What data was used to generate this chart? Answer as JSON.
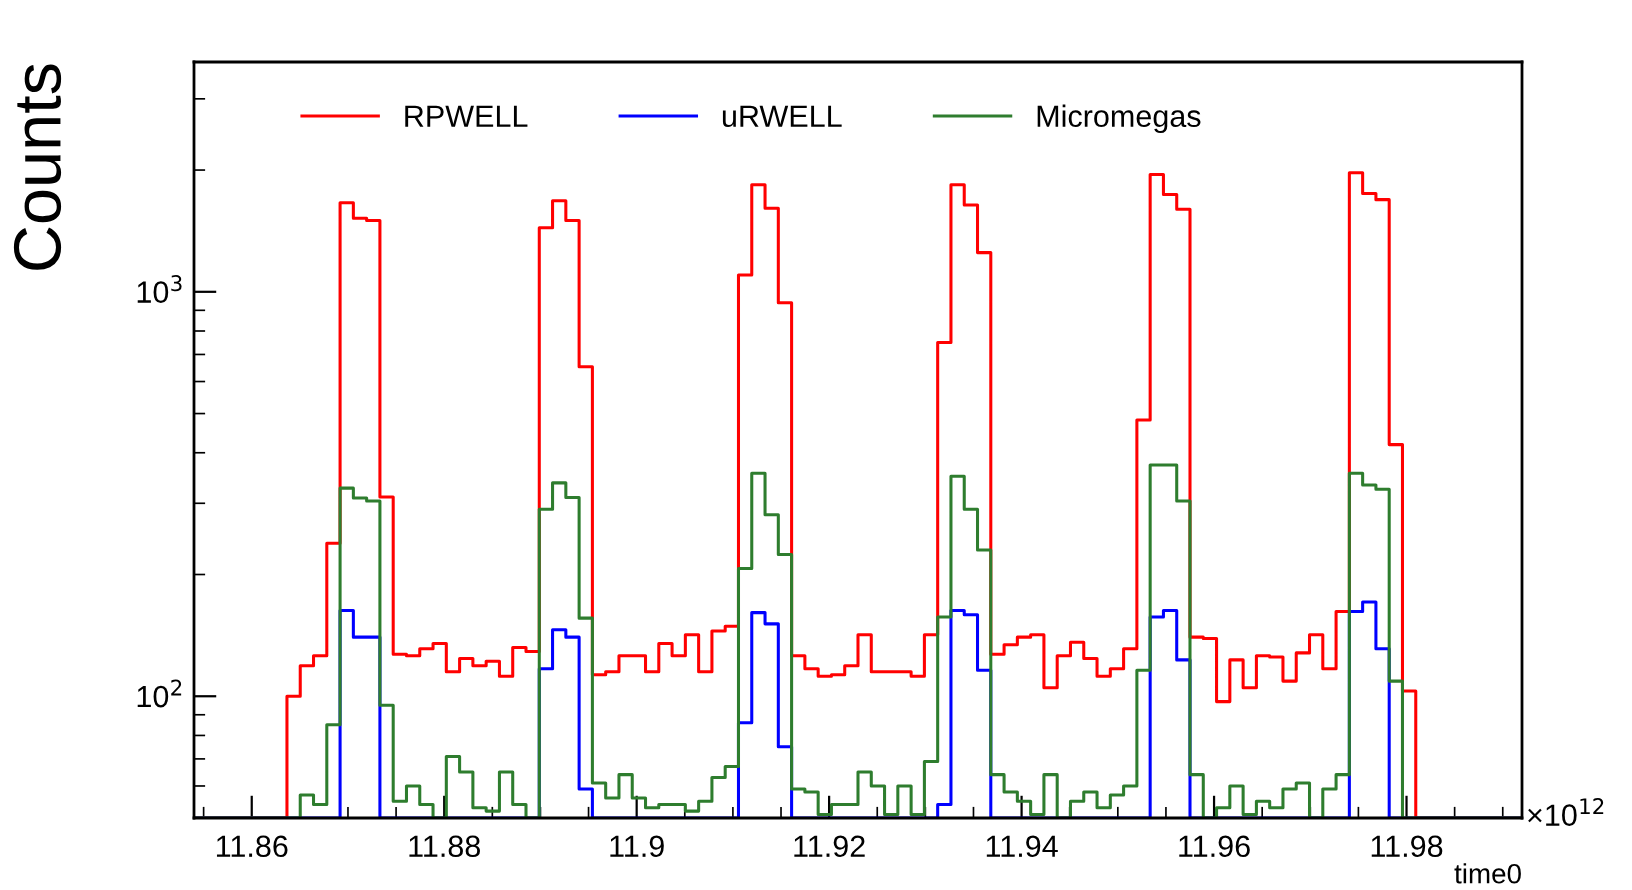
{
  "chart_data": {
    "type": "histogram",
    "ylabel": "Counts",
    "xlabel": "time0",
    "annotations": [
      "×10$^{12}$"
    ],
    "bins": [
      11.854,
      11.85538,
      11.85676,
      11.85814,
      11.85952,
      11.8609,
      11.86228,
      11.86366,
      11.86504,
      11.86642,
      11.8678,
      11.86918,
      11.87056,
      11.87194,
      11.87332,
      11.8747,
      11.87608,
      11.87746,
      11.87884,
      11.88022,
      11.8816,
      11.88298,
      11.88436,
      11.88574,
      11.88712,
      11.8885,
      11.88988,
      11.89126,
      11.89264,
      11.89402,
      11.8954,
      11.89678,
      11.89816,
      11.89954,
      11.90092,
      11.9023,
      11.90368,
      11.90506,
      11.90644,
      11.90782,
      11.9092,
      11.91058,
      11.91196,
      11.91334,
      11.91472,
      11.9161,
      11.91748,
      11.91886,
      11.92024,
      11.92162,
      11.923,
      11.92438,
      11.92576,
      11.92714,
      11.92852,
      11.9299,
      11.93128,
      11.93266,
      11.93404,
      11.93542,
      11.9368,
      11.93818,
      11.93956,
      11.94094,
      11.94232,
      11.9437,
      11.94508,
      11.94646,
      11.94784,
      11.94922,
      11.9506,
      11.95198,
      11.95336,
      11.95474,
      11.95612,
      11.9575,
      11.95888,
      11.96026,
      11.96164,
      11.96302,
      11.9644,
      11.96578,
      11.96716,
      11.96854,
      11.96992,
      11.9713,
      11.97268,
      11.97406,
      11.97544,
      11.97682,
      11.9782,
      11.97958,
      11.98096,
      11.98234,
      11.98372,
      11.9851,
      11.98648,
      11.98786,
      11.98924,
      11.99062,
      11.992
    ],
    "series": [
      {
        "name": "RPWELL",
        "color": "#ff0000",
        "values": [
          null,
          null,
          null,
          null,
          null,
          null,
          null,
          100,
          119,
          126,
          239,
          1660,
          1520,
          1500,
          311,
          127,
          126,
          131,
          135,
          115,
          124,
          119,
          122,
          112,
          132,
          129,
          1440,
          1680,
          1500,
          653,
          113,
          115,
          126,
          126,
          115,
          135,
          126,
          142,
          115,
          145,
          149,
          1100,
          1840,
          1610,
          940,
          126,
          117,
          112,
          113,
          119,
          142,
          115,
          115,
          115,
          112,
          142,
          749,
          1840,
          1640,
          1250,
          127,
          134,
          140,
          142,
          105,
          126,
          136,
          124,
          112,
          117,
          131,
          482,
          1950,
          1740,
          1600,
          140,
          139,
          97,
          123,
          105,
          126,
          125,
          109,
          128,
          142,
          117,
          162,
          1970,
          1750,
          1690,
          419,
          103,
          null,
          null,
          null,
          null,
          null,
          null,
          null,
          null
        ]
      },
      {
        "name": "uRWELL",
        "color": "#0000ff",
        "values": [
          null,
          null,
          null,
          null,
          null,
          null,
          null,
          null,
          null,
          null,
          null,
          163,
          140,
          140,
          null,
          null,
          null,
          null,
          null,
          null,
          null,
          null,
          null,
          null,
          null,
          null,
          117,
          146,
          140,
          59,
          null,
          null,
          null,
          null,
          null,
          null,
          null,
          null,
          null,
          null,
          null,
          86,
          161,
          151,
          75,
          null,
          null,
          null,
          null,
          null,
          null,
          null,
          null,
          null,
          null,
          null,
          54,
          163,
          159,
          116,
          null,
          null,
          null,
          null,
          null,
          null,
          null,
          null,
          null,
          null,
          null,
          null,
          157,
          163,
          123,
          null,
          null,
          null,
          null,
          null,
          null,
          null,
          null,
          null,
          null,
          null,
          null,
          162,
          171,
          131,
          null,
          null,
          null,
          null,
          null,
          null,
          null,
          null,
          null,
          null
        ]
      },
      {
        "name": "Micromegas",
        "color": "#2e7d2e",
        "values": [
          null,
          null,
          null,
          null,
          null,
          null,
          null,
          null,
          57,
          54,
          85,
          327,
          309,
          304,
          95,
          55,
          60,
          54,
          null,
          71,
          65,
          53,
          52,
          65,
          54,
          null,
          290,
          337,
          310,
          156,
          61,
          56,
          64,
          56,
          53,
          54,
          54,
          52,
          55,
          63,
          67,
          207,
          356,
          281,
          224,
          59,
          58,
          51,
          54,
          54,
          65,
          60,
          51,
          60,
          51,
          69,
          157,
          350,
          290,
          230,
          64,
          58,
          55,
          51,
          64,
          null,
          55,
          58,
          53,
          57,
          60,
          116,
          373,
          373,
          304,
          64,
          null,
          53,
          60,
          51,
          55,
          53,
          59,
          61,
          null,
          59,
          64,
          356,
          333,
          325,
          109,
          null,
          null,
          null,
          null,
          null,
          null,
          null,
          null,
          null
        ]
      }
    ],
    "xlim": [
      11.854,
      11.992
    ],
    "ylim": [
      50,
      3700
    ],
    "log": "y",
    "xticks": [
      11.86,
      11.88,
      11.9,
      11.92,
      11.94,
      11.96,
      11.98
    ],
    "yticks": [
      {
        "value": 100,
        "label": "10$^{2}$"
      },
      {
        "value": 1000,
        "label": "10$^{3}$"
      }
    ],
    "legend": "top"
  }
}
